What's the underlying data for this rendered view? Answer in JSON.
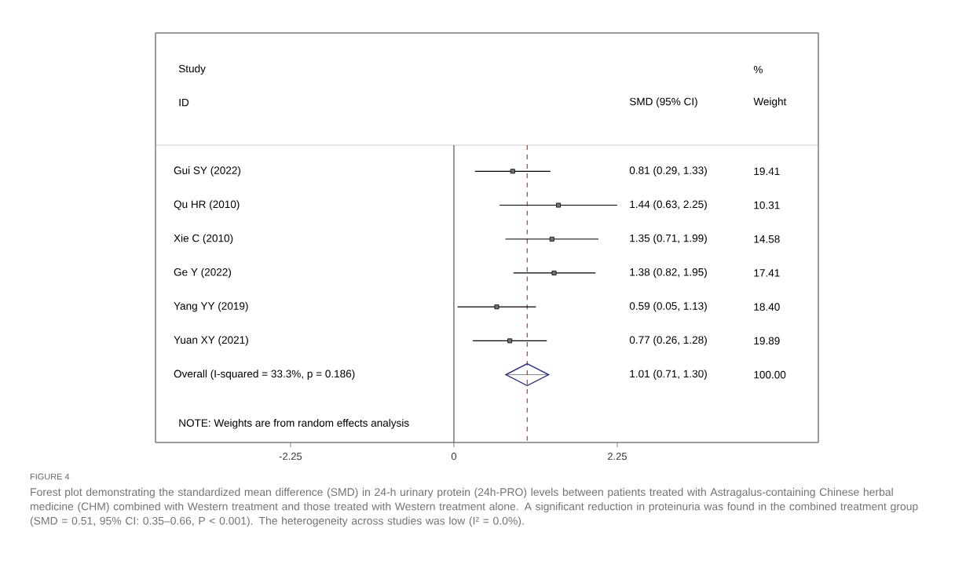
{
  "chart_data": {
    "type": "scatter",
    "orientation": "horizontal",
    "categories": [
      "Gui SY (2022)",
      "Qu HR (2010)",
      "Xie C (2010)",
      "Ge Y (2022)",
      "Yang YY (2019)",
      "Yuan XY (2021)",
      "Overall  (I-squared = 33.3%, p = 0.186)"
    ],
    "series": [
      {
        "color": "#000000",
        "marker": "square",
        "values": [
          0.81,
          1.44,
          1.35,
          1.38,
          0.59,
          0.77,
          null
        ],
        "errors": [
          [
            0.29,
            1.33
          ],
          [
            0.63,
            2.25
          ],
          [
            0.71,
            1.99
          ],
          [
            0.82,
            1.95
          ],
          [
            0.05,
            1.13
          ],
          [
            0.26,
            1.28
          ],
          null
        ]
      },
      {
        "color": "#2b2b8c",
        "marker": "diamond",
        "values": [
          null,
          null,
          null,
          null,
          null,
          null,
          1.01
        ],
        "errors": [
          null,
          null,
          null,
          null,
          null,
          null,
          [
            0.71,
            1.3
          ]
        ]
      }
    ],
    "xlim": [
      -4.11,
      5.02
    ],
    "xticks": [
      -2.25,
      0,
      2.25
    ],
    "ref_lines": [
      {
        "axis": "x",
        "value": 0,
        "color": "#555555",
        "line_style": "solid"
      },
      {
        "axis": "x",
        "value": 1.01,
        "color": "#c0392b",
        "line_style": "dashed"
      }
    ],
    "annotations": [
      "Study",
      "ID",
      "SMD (95% CI)",
      "%",
      "Weight",
      "NOTE: Weights are from random effects analysis",
      "FIGURE 4",
      "Forest plot demonstrating the standardized mean difference (SMD) in 24-h urinary protein (24h-PRO) levels between patients treated with Astragalus-containing Chinese herbal medicine (CHM) combined with Western treatment and those treated with Western treatment alone. A significant reduction in proteinuria was found in the combined treatment group (SMD = 0.51, 95% CI: 0.35–0.66, P < 0.001). The heterogeneity across studies was low (I² = 0.0%).",
      "0.81 (0.29, 1.33)",
      "1.44 (0.63, 2.25)",
      "1.35 (0.71, 1.99)",
      "1.38 (0.82, 1.95)",
      "0.59 (0.05, 1.13)",
      "0.77 (0.26, 1.28)",
      "1.01 (0.71, 1.30)",
      "19.41",
      "10.31",
      "14.58",
      "17.41",
      "18.40",
      "19.89",
      "100.00"
    ]
  }
}
